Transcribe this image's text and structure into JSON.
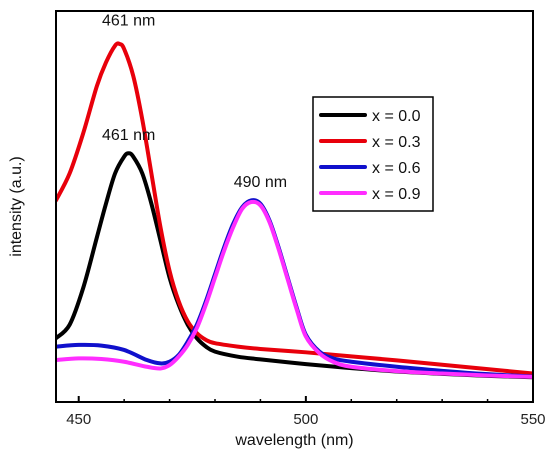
{
  "chart_data": {
    "type": "line",
    "xlabel": "wavelength (nm)",
    "ylabel": "intensity (a.u.)",
    "xlim": [
      445,
      550
    ],
    "ylim": [
      0,
      1.0
    ],
    "xticks": [
      "450",
      "500",
      "550"
    ],
    "yticks_visible": false,
    "grid": false,
    "legend_position": "upper-right",
    "series": [
      {
        "name": "x = 0.0",
        "color": "#000000",
        "x": [
          445,
          448,
          451,
          454,
          456,
          458,
          460,
          461,
          462,
          464,
          466,
          468,
          470,
          472,
          474,
          476,
          478,
          480,
          485,
          490,
          500,
          510,
          520,
          530,
          540,
          550
        ],
        "y": [
          0.12,
          0.16,
          0.27,
          0.42,
          0.52,
          0.61,
          0.66,
          0.67,
          0.66,
          0.61,
          0.52,
          0.41,
          0.3,
          0.22,
          0.16,
          0.12,
          0.095,
          0.08,
          0.065,
          0.057,
          0.043,
          0.031,
          0.021,
          0.014,
          0.008,
          0.004
        ]
      },
      {
        "name": "x = 0.3",
        "color": "#e8000b",
        "x": [
          445,
          448,
          451,
          454,
          456,
          458,
          459,
          460,
          462,
          464,
          466,
          468,
          470,
          472,
          474,
          476,
          478,
          480,
          485,
          490,
          500,
          510,
          520,
          530,
          540,
          550
        ],
        "y": [
          0.53,
          0.61,
          0.73,
          0.87,
          0.94,
          0.99,
          0.995,
          0.98,
          0.9,
          0.77,
          0.61,
          0.45,
          0.32,
          0.23,
          0.17,
          0.135,
          0.115,
          0.105,
          0.095,
          0.088,
          0.078,
          0.066,
          0.054,
          0.041,
          0.028,
          0.015
        ]
      },
      {
        "name": "x = 0.6",
        "color": "#1010cc",
        "x": [
          445,
          450,
          455,
          460,
          465,
          468,
          470,
          472,
          474,
          476,
          478,
          480,
          482,
          484,
          486,
          488,
          490,
          492,
          494,
          496,
          498,
          500,
          503,
          506,
          510,
          520,
          530,
          540,
          550
        ],
        "y": [
          0.095,
          0.1,
          0.098,
          0.085,
          0.055,
          0.045,
          0.05,
          0.07,
          0.11,
          0.16,
          0.23,
          0.31,
          0.39,
          0.46,
          0.51,
          0.53,
          0.52,
          0.47,
          0.39,
          0.3,
          0.21,
          0.13,
          0.08,
          0.06,
          0.05,
          0.035,
          0.023,
          0.013,
          0.006
        ]
      },
      {
        "name": "x = 0.9",
        "color": "#ff2dff",
        "x": [
          445,
          450,
          455,
          460,
          465,
          468,
          470,
          472,
          474,
          476,
          478,
          480,
          482,
          484,
          486,
          488,
          490,
          492,
          494,
          496,
          498,
          500,
          503,
          506,
          510,
          520,
          530,
          540,
          550
        ],
        "y": [
          0.055,
          0.06,
          0.058,
          0.05,
          0.035,
          0.03,
          0.04,
          0.065,
          0.1,
          0.15,
          0.22,
          0.3,
          0.38,
          0.45,
          0.505,
          0.525,
          0.515,
          0.465,
          0.385,
          0.295,
          0.205,
          0.125,
          0.075,
          0.05,
          0.035,
          0.022,
          0.015,
          0.009,
          0.005
        ]
      }
    ],
    "annotations": [
      {
        "text": "461 nm",
        "x": 461,
        "y": 1.05
      },
      {
        "text": "461 nm",
        "x": 461,
        "y": 0.71
      },
      {
        "text": "490 nm",
        "x": 490,
        "y": 0.57
      }
    ]
  }
}
